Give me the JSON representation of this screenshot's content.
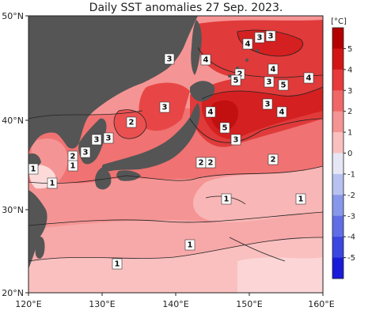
{
  "title": "Daily SST anomalies 27 Sep. 2023.",
  "units": "[°C]",
  "lat_labels": [
    "50°N",
    "40°N",
    "30°N",
    "20°N"
  ],
  "lon_labels": [
    "120°E",
    "130°E",
    "140°E",
    "150°E",
    "160°E"
  ],
  "colorbar": {
    "ticks": [
      "5",
      "4",
      "3",
      "2",
      "1",
      "0",
      "-1",
      "-2",
      "-3",
      "-4",
      "-5"
    ],
    "colors": [
      "#b30000",
      "#d21414",
      "#e83a3a",
      "#f06767",
      "#f59494",
      "#fac0c0",
      "#e6e6f5",
      "#b8c2f0",
      "#8797ea",
      "#5f6ee6",
      "#3b45e0",
      "#1a1ad9"
    ]
  },
  "colors": {
    "land": "#555555",
    "frame": "#222222",
    "contour": "#222222"
  },
  "anomaly_labels": [
    "3",
    "4",
    "3",
    "4",
    "4",
    "2",
    "5",
    "3",
    "5",
    "4",
    "3",
    "4",
    "3",
    "4",
    "5",
    "3",
    "3",
    "2",
    "3",
    "3",
    "3",
    "2",
    "2",
    "2",
    "2",
    "1",
    "1",
    "1",
    "1",
    "1",
    "1",
    "1"
  ]
}
